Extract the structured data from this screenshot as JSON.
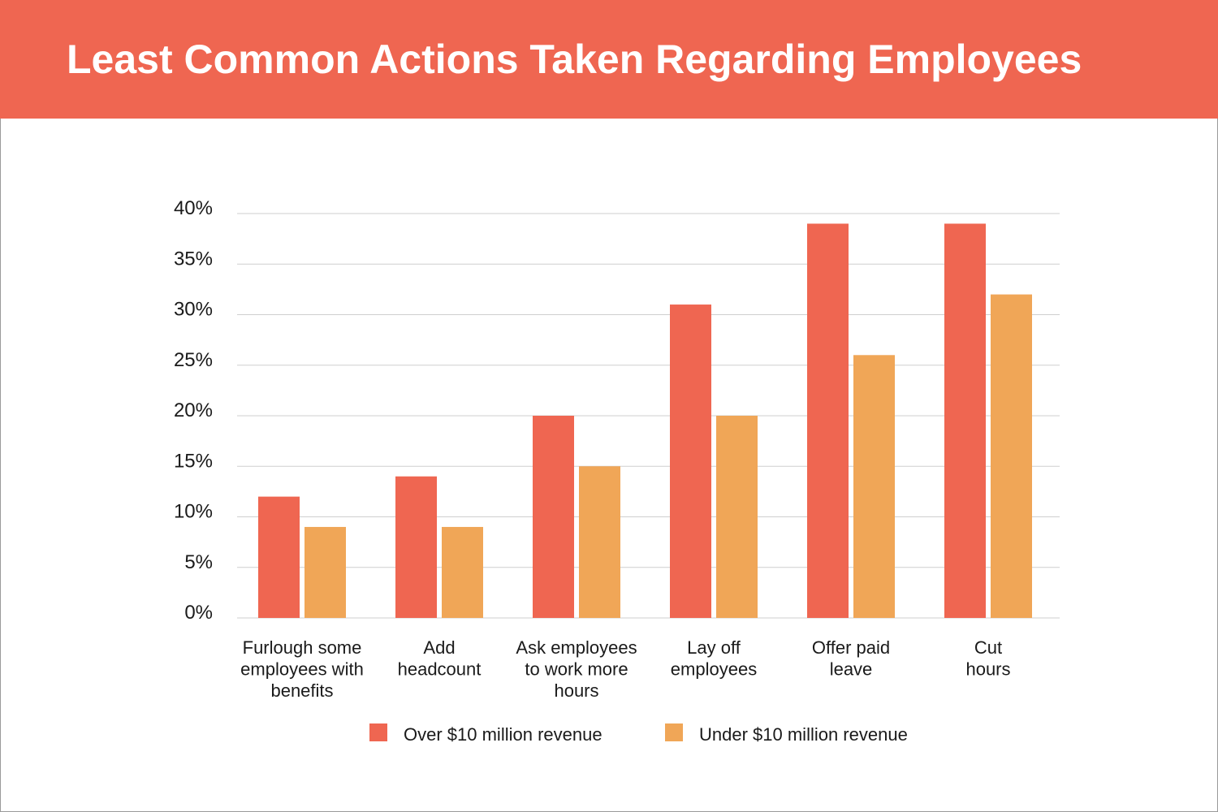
{
  "chart_data": {
    "type": "bar",
    "title": "Least Common Actions Taken Regarding Employees",
    "xlabel": "",
    "ylabel": "",
    "categories": [
      [
        "Furlough some",
        "employees with",
        "benefits"
      ],
      [
        "Add",
        "headcount"
      ],
      [
        "Ask employees",
        "to work more",
        "hours"
      ],
      [
        "Lay off",
        "employees"
      ],
      [
        "Offer paid",
        "leave"
      ],
      [
        "Cut",
        "hours"
      ]
    ],
    "series": [
      {
        "name": "Over $10 million revenue",
        "color": "#ef6651",
        "values": [
          12,
          14,
          20,
          31,
          39,
          39
        ]
      },
      {
        "name": "Under $10 million revenue",
        "color": "#f0a657",
        "values": [
          9,
          9,
          15,
          20,
          26,
          32
        ]
      }
    ],
    "ylim": [
      0,
      40
    ],
    "yticks": [
      "0%",
      "5%",
      "10%",
      "15%",
      "20%",
      "25%",
      "30%",
      "35%",
      "40%"
    ],
    "grid": true,
    "legend_position": "bottom"
  },
  "colors": {
    "header": "#ef6651",
    "grid": "#cfcfcf"
  }
}
